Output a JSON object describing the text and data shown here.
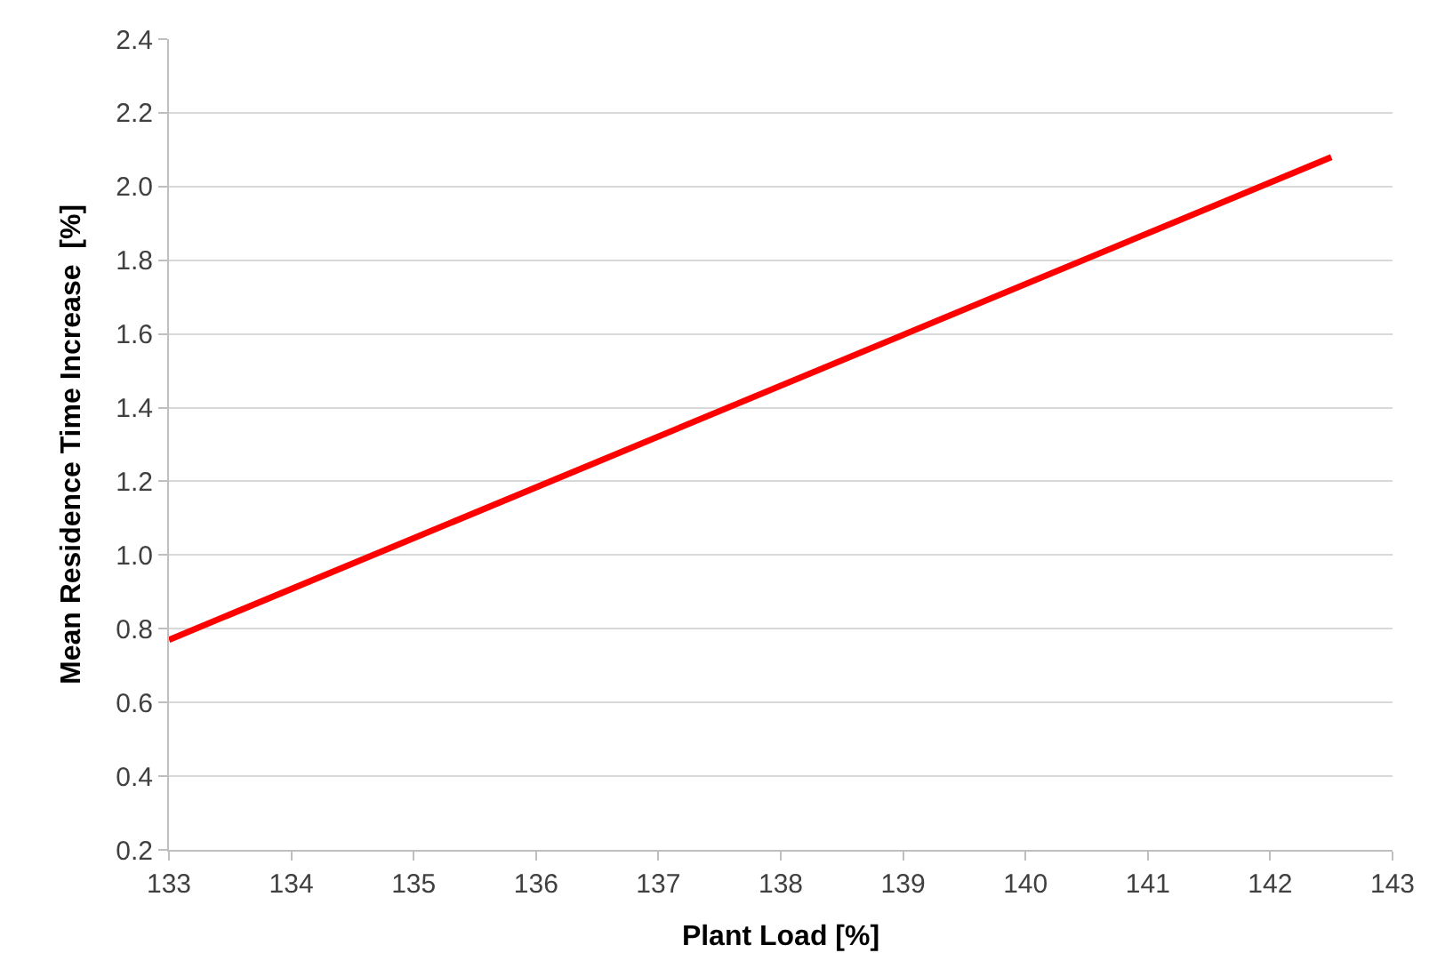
{
  "chart_data": {
    "type": "line",
    "xlabel": "Plant Load [%]",
    "ylabel": "Mean Residence Time Increase  [%]",
    "x": [
      133,
      142.5
    ],
    "series": [
      {
        "color": "#ff0000",
        "values": [
          0.77,
          2.08
        ]
      }
    ],
    "xlim": [
      133,
      143
    ],
    "xticks": [
      133,
      134,
      135,
      136,
      137,
      138,
      139,
      140,
      141,
      142,
      143
    ],
    "ylim": [
      0.2,
      2.4
    ],
    "yticks": [
      {
        "value": 0.2,
        "label": "0.2"
      },
      {
        "value": 0.4,
        "label": "0.4"
      },
      {
        "value": 0.6,
        "label": "0.6"
      },
      {
        "value": 0.8,
        "label": "0.8"
      },
      {
        "value": 1.0,
        "label": "1.0"
      },
      {
        "value": 1.2,
        "label": "1.2"
      },
      {
        "value": 1.4,
        "label": "1.4"
      },
      {
        "value": 1.6,
        "label": "1.6"
      },
      {
        "value": 1.8,
        "label": "1.8"
      },
      {
        "value": 2.0,
        "label": "2.0"
      },
      {
        "value": 2.2,
        "label": "2.2"
      },
      {
        "value": 2.4,
        "label": "2.4"
      }
    ],
    "grid": "y",
    "marker": "none",
    "line_style": "solid"
  }
}
